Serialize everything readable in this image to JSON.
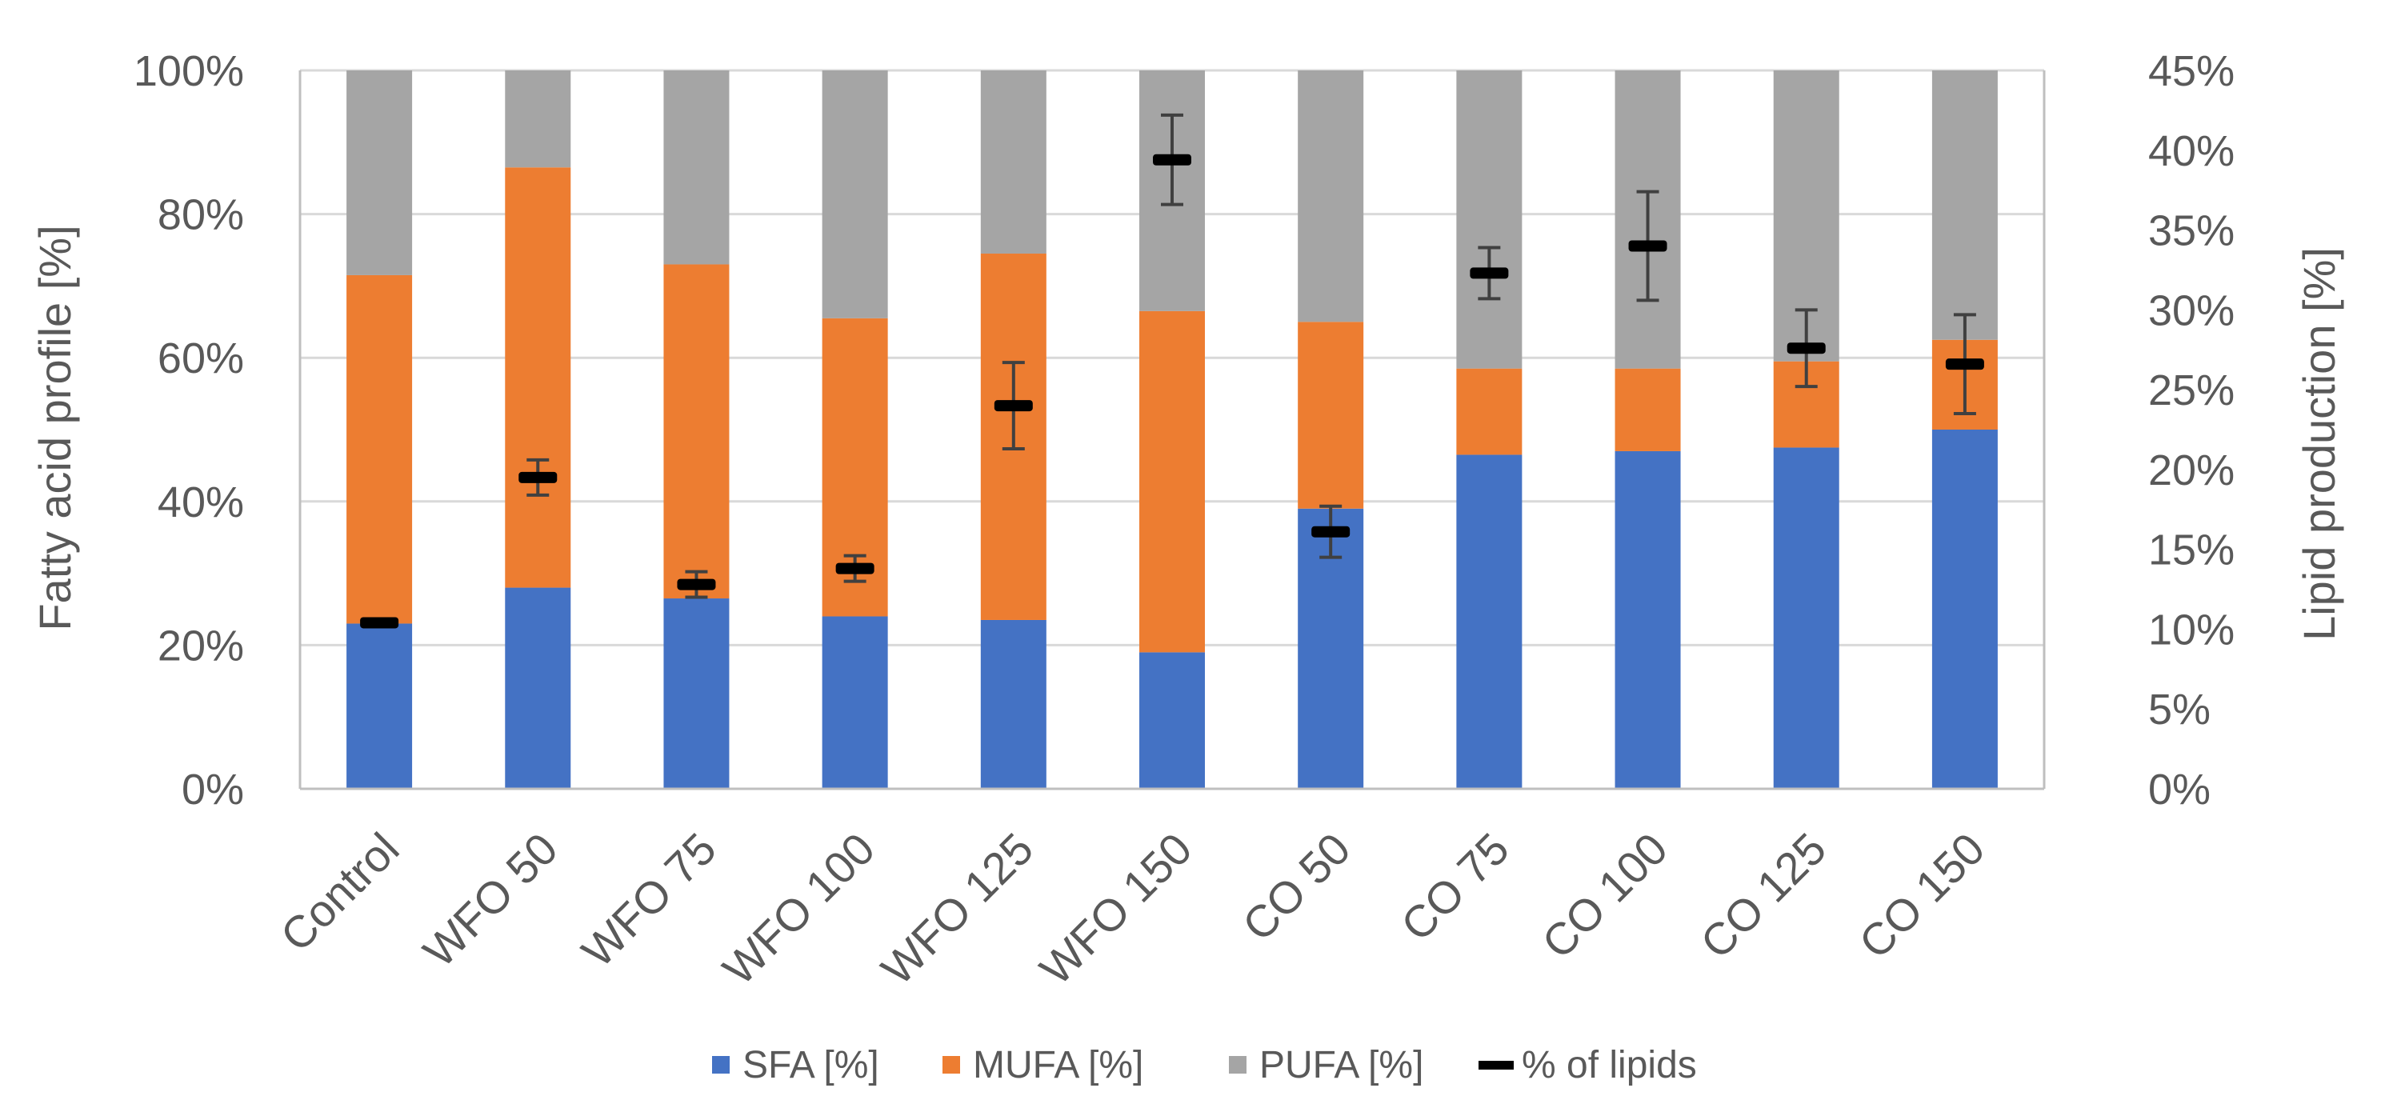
{
  "chart_data": {
    "type": "bar",
    "stacked": true,
    "categories": [
      "Control",
      "WFO 50",
      "WFO 75",
      "WFO 100",
      "WFO 125",
      "WFO 150",
      "CO 50",
      "CO 75",
      "CO 100",
      "CO 125",
      "CO 150"
    ],
    "series": [
      {
        "name": "SFA [%]",
        "color": "#4472c4",
        "values": [
          23,
          28,
          26.5,
          24,
          23.5,
          19,
          39,
          46.5,
          47,
          47.5,
          50
        ]
      },
      {
        "name": "MUFA [%]",
        "color": "#ed7d31",
        "values": [
          48.5,
          58.5,
          46.5,
          41.5,
          51,
          47.5,
          26,
          12,
          11.5,
          12,
          12.5
        ]
      },
      {
        "name": "PUFA [%]",
        "color": "#a5a5a5",
        "values": [
          28.5,
          13.5,
          27,
          34.5,
          25.5,
          33.5,
          35,
          41.5,
          41.5,
          40.5,
          37.5
        ]
      }
    ],
    "line_series": {
      "name": "% of lipids",
      "axis": "secondary",
      "values": [
        10.4,
        19.5,
        12.8,
        13.8,
        24,
        39.4,
        16.1,
        32.3,
        34,
        27.6,
        26.6
      ],
      "error": [
        0.2,
        1.1,
        0.8,
        0.8,
        2.7,
        2.8,
        1.6,
        1.6,
        3.4,
        2.4,
        3.1
      ]
    },
    "ylabel": "Fatty acid profile [%]",
    "y2label": "Lipid production [%]",
    "ylim": [
      0,
      100
    ],
    "y2lim": [
      0,
      45
    ],
    "yticks": [
      "0%",
      "20%",
      "40%",
      "60%",
      "80%",
      "100%"
    ],
    "y2ticks": [
      "0%",
      "5%",
      "10%",
      "15%",
      "20%",
      "25%",
      "30%",
      "35%",
      "40%",
      "45%"
    ],
    "grid": true,
    "legend": {
      "position": "bottom",
      "entries": [
        "SFA [%]",
        "MUFA [%]",
        "PUFA [%]",
        "% of lipids"
      ]
    }
  }
}
